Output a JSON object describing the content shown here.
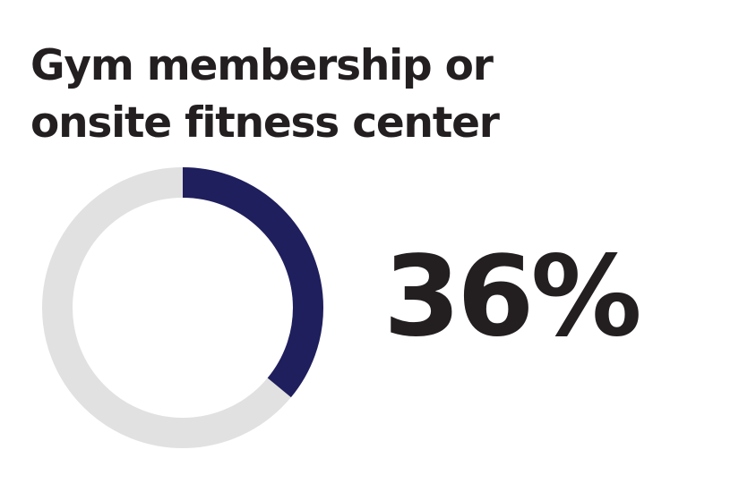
{
  "title_lines": [
    "Gym membership or",
    "onsite fitness center"
  ],
  "big_value_label": "36%",
  "chart_data": {
    "type": "pie",
    "subtype": "donut",
    "title": "Gym membership or onsite fitness center",
    "values": [
      36,
      64
    ],
    "value_format": "percent",
    "colors": {
      "highlight": "#1f1f5e",
      "remainder": "#e1e1e1"
    },
    "start_angle": "top",
    "direction": "clockwise",
    "legend": "none"
  }
}
